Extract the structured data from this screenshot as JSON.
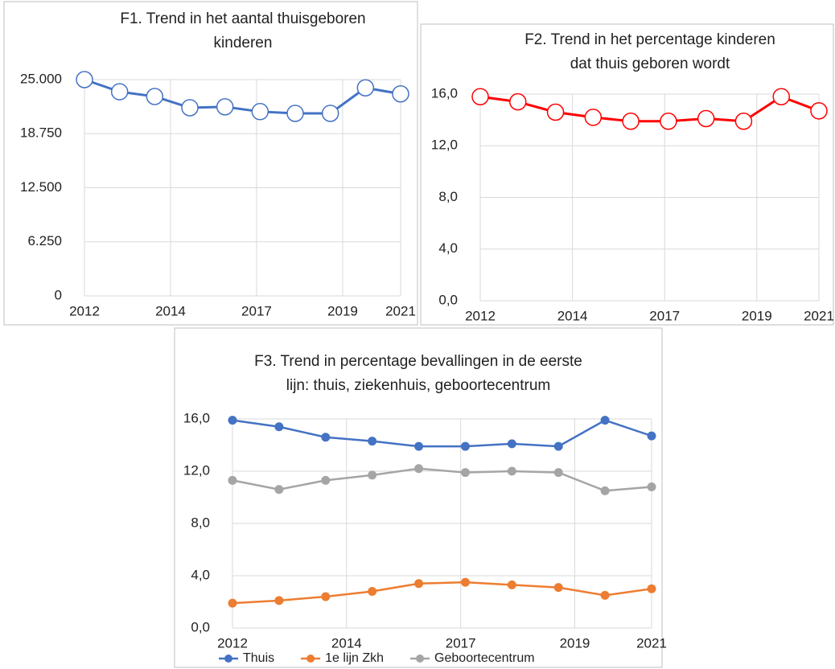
{
  "chart_data": [
    {
      "type": "line",
      "title": [
        "F1. Trend in het aantal thuisgeboren",
        "kinderen"
      ],
      "x": [
        2012,
        2013,
        2014,
        2015,
        2016,
        2017,
        2018,
        2019,
        2020,
        2021
      ],
      "series": [
        {
          "color": "#4472c4",
          "marker": "hollow",
          "values": [
            25000,
            23600,
            23050,
            21750,
            21850,
            21300,
            21100,
            21100,
            24050,
            23350
          ]
        }
      ],
      "xlim": [
        2012,
        2021
      ],
      "xticks": [
        2012,
        {
          "value": 2014.45,
          "label": "2014"
        },
        {
          "value": 2016.9,
          "label": "2017"
        },
        {
          "value": 2019.35,
          "label": "2019"
        },
        2021
      ],
      "ylim": [
        0,
        25000
      ],
      "yticks": [
        0,
        {
          "value": 6250,
          "label": "6.250"
        },
        {
          "value": 12500,
          "label": "12.500"
        },
        {
          "value": 18750,
          "label": "18.750"
        },
        {
          "value": 25000,
          "label": "25.000"
        }
      ],
      "grid": true
    },
    {
      "type": "line",
      "title": [
        "F2. Trend in het percentage kinderen",
        "dat thuis geboren wordt"
      ],
      "x": [
        2012,
        2013,
        2014,
        2015,
        2016,
        2017,
        2018,
        2019,
        2020,
        2021
      ],
      "series": [
        {
          "color": "#ff0000",
          "marker": "hollow",
          "values": [
            15.8,
            15.4,
            14.6,
            14.2,
            13.9,
            13.9,
            14.1,
            13.9,
            15.8,
            14.7
          ]
        }
      ],
      "xlim": [
        2012,
        2021
      ],
      "xticks": [
        2012,
        {
          "value": 2014.45,
          "label": "2014"
        },
        {
          "value": 2016.9,
          "label": "2017"
        },
        {
          "value": 2019.35,
          "label": "2019"
        },
        2021
      ],
      "ylim": [
        0,
        16
      ],
      "yticks": [
        {
          "value": 0,
          "label": "0,0"
        },
        {
          "value": 4,
          "label": "4,0"
        },
        {
          "value": 8,
          "label": "8,0"
        },
        {
          "value": 12,
          "label": "12,0"
        },
        {
          "value": 16,
          "label": "16,0"
        }
      ],
      "grid": true
    },
    {
      "type": "line",
      "title": [
        "F3. Trend in percentage bevallingen in de eerste",
        "lijn: thuis, ziekenhuis, geboortecentrum"
      ],
      "x": [
        2012,
        2013,
        2014,
        2015,
        2016,
        2017,
        2018,
        2019,
        2020,
        2021
      ],
      "series": [
        {
          "name": "Thuis",
          "color": "#4472c4",
          "marker": "filled",
          "values": [
            15.9,
            15.4,
            14.6,
            14.3,
            13.9,
            13.9,
            14.1,
            13.9,
            15.9,
            14.7
          ]
        },
        {
          "name": "1e lijn Zkh",
          "color": "#ed7d31",
          "marker": "filled",
          "values": [
            1.9,
            2.1,
            2.4,
            2.8,
            3.4,
            3.5,
            3.3,
            3.1,
            2.5,
            3.0
          ]
        },
        {
          "name": "Geboortecentrum",
          "color": "#a5a5a5",
          "marker": "filled",
          "values": [
            11.3,
            10.6,
            11.3,
            11.7,
            12.2,
            11.9,
            12.0,
            11.9,
            10.5,
            10.8
          ]
        }
      ],
      "xlim": [
        2012,
        2021
      ],
      "xticks": [
        2012,
        {
          "value": 2014.45,
          "label": "2014"
        },
        {
          "value": 2016.9,
          "label": "2017"
        },
        {
          "value": 2019.35,
          "label": "2019"
        },
        2021
      ],
      "ylim": [
        0,
        16
      ],
      "yticks": [
        {
          "value": 0,
          "label": "0,0"
        },
        {
          "value": 4,
          "label": "4,0"
        },
        {
          "value": 8,
          "label": "8,0"
        },
        {
          "value": 12,
          "label": "12,0"
        },
        {
          "value": 16,
          "label": "16,0"
        }
      ],
      "grid": true,
      "legend": "bottom"
    }
  ]
}
